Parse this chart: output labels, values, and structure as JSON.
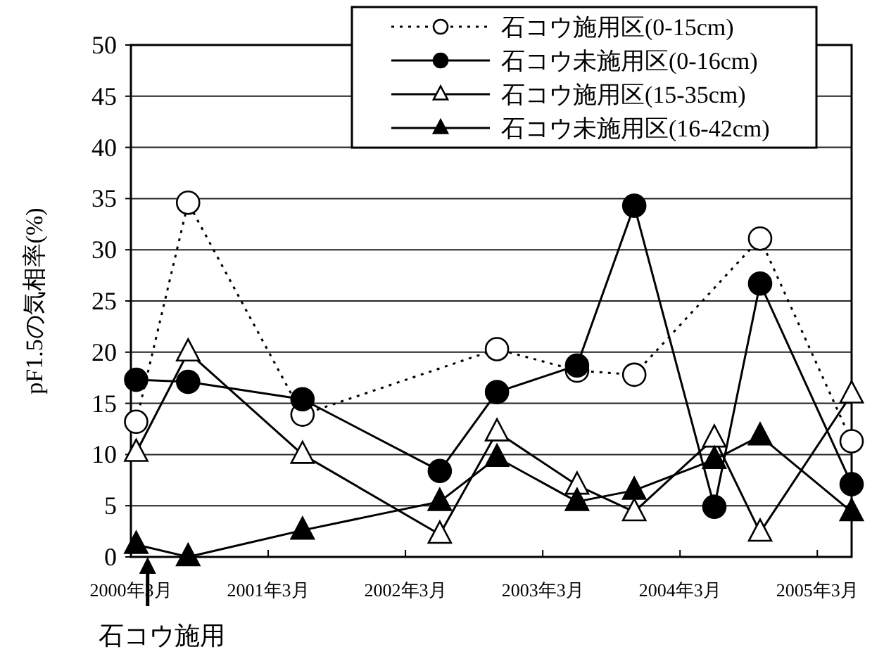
{
  "chart_data": {
    "type": "line",
    "ylabel": "pF1.5の気相率(%)",
    "x": [
      "2000-03-15",
      "2000-08",
      "2001-06",
      "2002-06",
      "2002-11",
      "2003-06",
      "2003-11",
      "2004-06",
      "2004-10",
      "2005-06"
    ],
    "series": [
      {
        "name": "石コウ施用区(0-15cm)",
        "color": "#000000",
        "marker": "circle",
        "line_style": "dotted",
        "values": [
          13.2,
          34.6,
          13.9,
          null,
          20.3,
          18.2,
          17.8,
          null,
          31.1,
          11.3
        ]
      },
      {
        "name": "石コウ未施用区(0-16cm)",
        "color": "#000000",
        "marker": "circle",
        "line_style": "solid",
        "values": [
          17.3,
          17.1,
          15.4,
          8.4,
          16.1,
          18.7,
          34.3,
          4.9,
          26.7,
          7.1
        ]
      },
      {
        "name": "石コウ施用区(15-35cm)",
        "color": "#000000",
        "marker": "triangle",
        "line_style": "solid",
        "values": [
          10.2,
          20.0,
          10.0,
          2.2,
          12.2,
          7.0,
          4.4,
          11.6,
          2.4,
          15.9
        ]
      },
      {
        "name": "石コウ未施用区(16-42cm)",
        "color": "#000000",
        "marker": "triangle",
        "line_style": "solid",
        "values": [
          1.2,
          0,
          2.6,
          5.4,
          9.7,
          5.4,
          6.5,
          9.5,
          11.8,
          4.4
        ]
      }
    ],
    "xlim": [
      "2000-03",
      "2005-06"
    ],
    "xticks": [
      {
        "value": "2000-03",
        "label": "2000年3月"
      },
      {
        "value": "2001-03",
        "label": "2001年3月"
      },
      {
        "value": "2002-03",
        "label": "2002年3月"
      },
      {
        "value": "2003-03",
        "label": "2003年3月"
      },
      {
        "value": "2004-03",
        "label": "2004年3月"
      },
      {
        "value": "2005-03",
        "label": "2005年3月"
      }
    ],
    "ylim": [
      0,
      50
    ],
    "yticks": [
      0,
      5,
      10,
      15,
      20,
      25,
      30,
      35,
      40,
      45,
      50
    ],
    "grid": "y",
    "legend": "top right",
    "annotations": [
      {
        "text": "石コウ施用",
        "x": "2000-04-15",
        "y": 0
      }
    ]
  }
}
